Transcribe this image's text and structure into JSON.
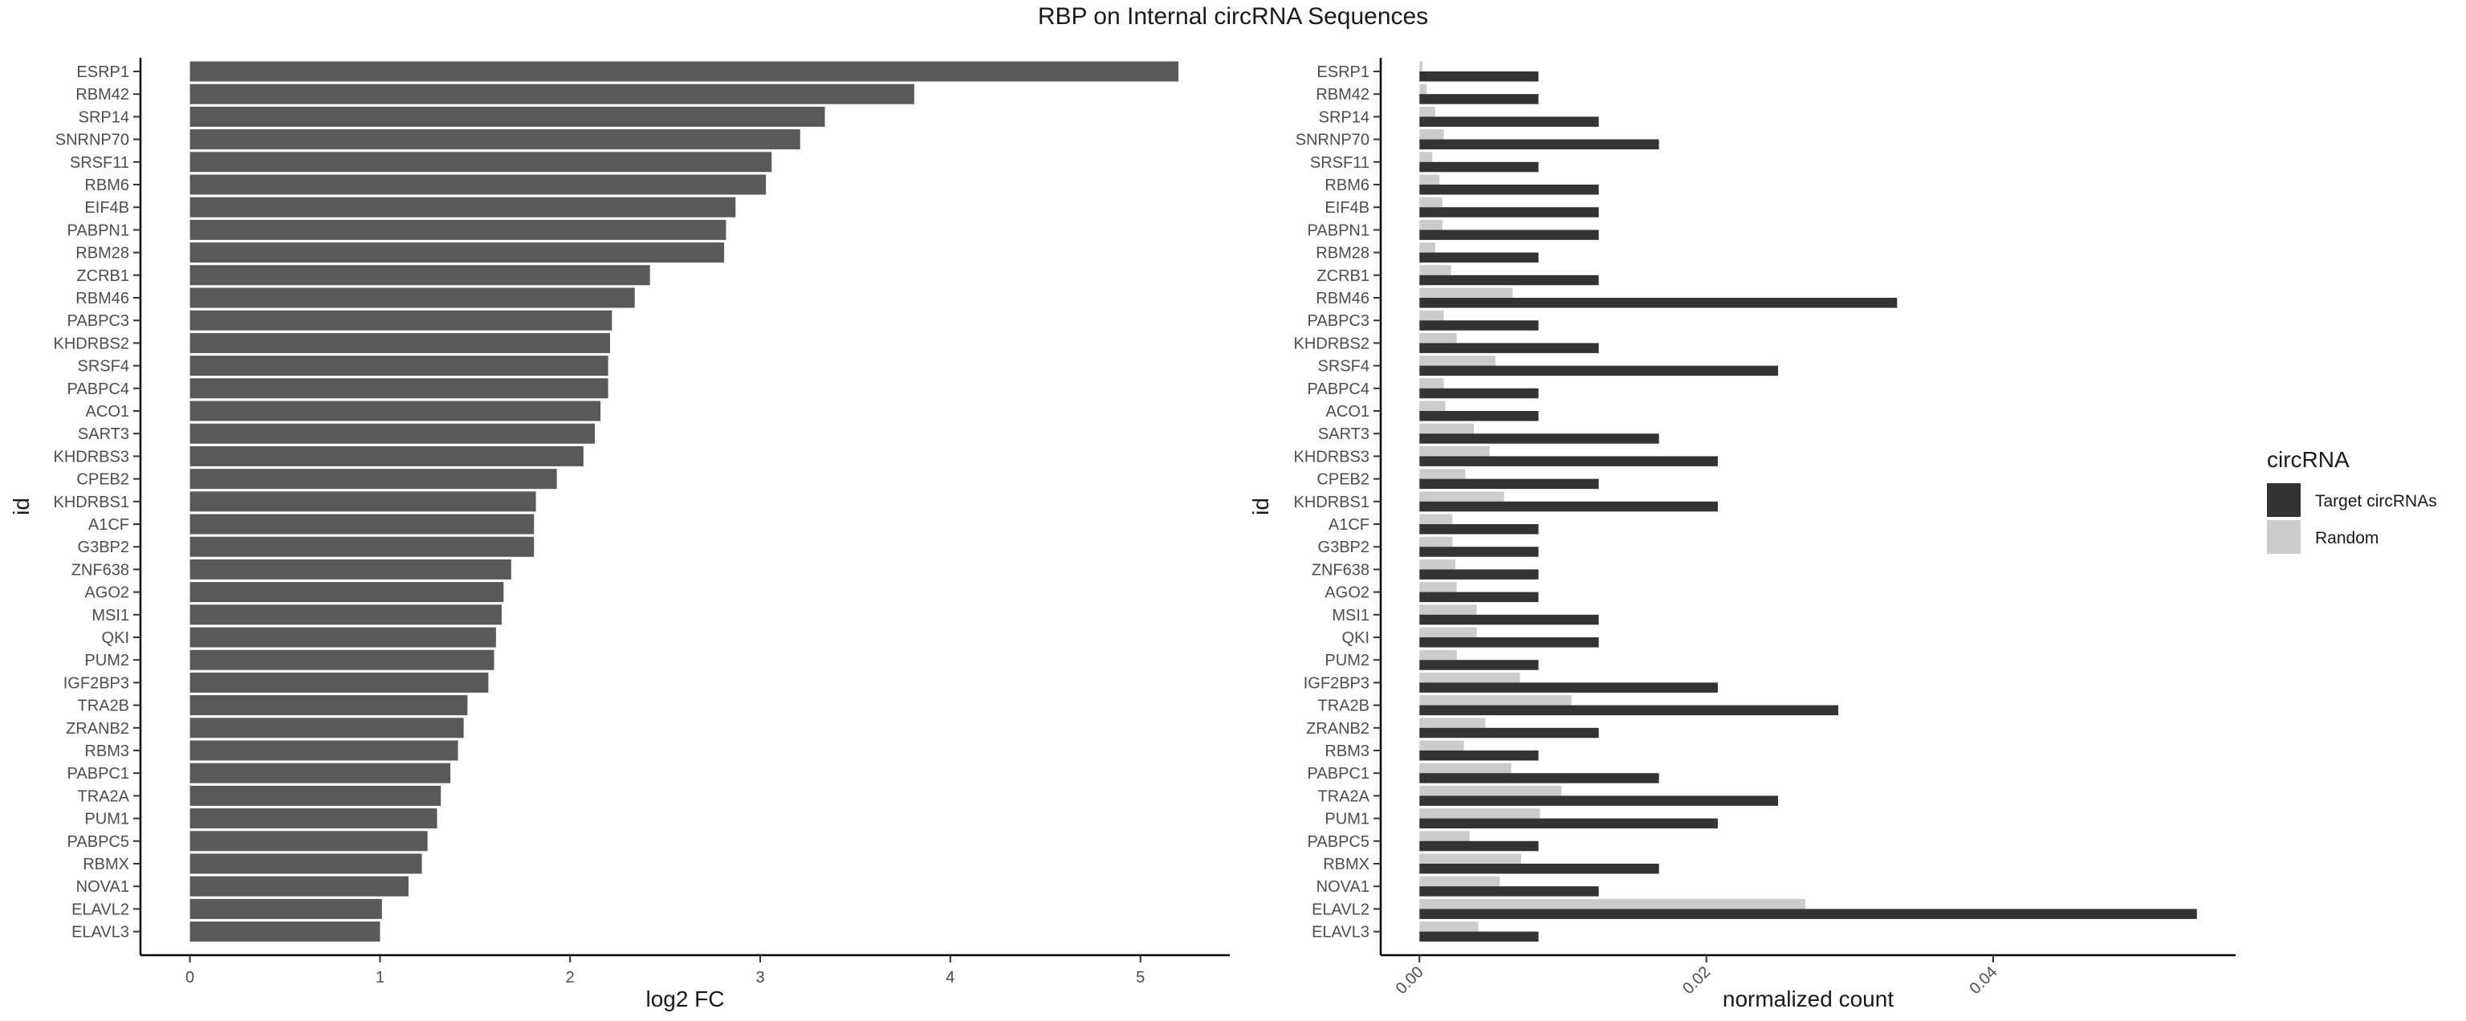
{
  "title": "RBP on Internal circRNA Sequences",
  "chart_data": [
    {
      "type": "bar",
      "orientation": "horizontal",
      "categories": [
        "ESRP1",
        "RBM42",
        "SRP14",
        "SNRNP70",
        "SRSF11",
        "RBM6",
        "EIF4B",
        "PABPN1",
        "RBM28",
        "ZCRB1",
        "RBM46",
        "PABPC3",
        "KHDRBS2",
        "SRSF4",
        "PABPC4",
        "ACO1",
        "SART3",
        "KHDRBS3",
        "CPEB2",
        "KHDRBS1",
        "A1CF",
        "G3BP2",
        "ZNF638",
        "AGO2",
        "MSI1",
        "QKI",
        "PUM2",
        "IGF2BP3",
        "TRA2B",
        "ZRANB2",
        "RBM3",
        "PABPC1",
        "TRA2A",
        "PUM1",
        "PABPC5",
        "RBMX",
        "NOVA1",
        "ELAVL2",
        "ELAVL3"
      ],
      "values": [
        5.2,
        3.81,
        3.34,
        3.21,
        3.06,
        3.03,
        2.87,
        2.82,
        2.81,
        2.42,
        2.34,
        2.22,
        2.21,
        2.2,
        2.2,
        2.16,
        2.13,
        2.07,
        1.93,
        1.82,
        1.81,
        1.81,
        1.69,
        1.65,
        1.64,
        1.61,
        1.6,
        1.57,
        1.46,
        1.44,
        1.41,
        1.37,
        1.32,
        1.3,
        1.25,
        1.22,
        1.15,
        1.01,
        1.0
      ],
      "xlabel": "log2 FC",
      "ylabel": "id",
      "xlim": [
        -0.26,
        5.47
      ],
      "xticks": [
        0,
        1,
        2,
        3,
        4,
        5
      ],
      "xtick_labels": [
        "0",
        "1",
        "2",
        "3",
        "4",
        "5"
      ],
      "grid": false,
      "color": "#595959"
    },
    {
      "type": "bar",
      "orientation": "horizontal",
      "grouped": true,
      "categories": [
        "ESRP1",
        "RBM42",
        "SRP14",
        "SNRNP70",
        "SRSF11",
        "RBM6",
        "EIF4B",
        "PABPN1",
        "RBM28",
        "ZCRB1",
        "RBM46",
        "PABPC3",
        "KHDRBS2",
        "SRSF4",
        "PABPC4",
        "ACO1",
        "SART3",
        "KHDRBS3",
        "CPEB2",
        "KHDRBS1",
        "A1CF",
        "G3BP2",
        "ZNF638",
        "AGO2",
        "MSI1",
        "QKI",
        "PUM2",
        "IGF2BP3",
        "TRA2B",
        "ZRANB2",
        "RBM3",
        "PABPC1",
        "TRA2A",
        "PUM1",
        "PABPC5",
        "RBMX",
        "NOVA1",
        "ELAVL2",
        "ELAVL3"
      ],
      "series": [
        {
          "name": "Target circRNAs",
          "color": "#333333",
          "values": [
            0.0083,
            0.0083,
            0.0125,
            0.0167,
            0.0083,
            0.0125,
            0.0125,
            0.0125,
            0.0083,
            0.0125,
            0.0333,
            0.0083,
            0.0125,
            0.025,
            0.0083,
            0.0083,
            0.0167,
            0.0208,
            0.0125,
            0.0208,
            0.0083,
            0.0083,
            0.0083,
            0.0083,
            0.0125,
            0.0125,
            0.0083,
            0.0208,
            0.0292,
            0.0125,
            0.0083,
            0.0167,
            0.025,
            0.0208,
            0.0083,
            0.0167,
            0.0125,
            0.0542,
            0.0083
          ]
        },
        {
          "name": "Random",
          "color": "#cccccc",
          "values": [
            0.0002,
            0.0005,
            0.0011,
            0.0017,
            0.0009,
            0.0014,
            0.0016,
            0.0016,
            0.0011,
            0.0022,
            0.0065,
            0.0017,
            0.0026,
            0.0053,
            0.0017,
            0.0018,
            0.0038,
            0.0049,
            0.0032,
            0.0059,
            0.0023,
            0.0023,
            0.0025,
            0.0026,
            0.004,
            0.004,
            0.0026,
            0.007,
            0.0106,
            0.0046,
            0.0031,
            0.0064,
            0.0099,
            0.0084,
            0.0035,
            0.0071,
            0.0056,
            0.0269,
            0.0041
          ]
        }
      ],
      "xlabel": "normalized count",
      "ylabel": "id",
      "xlim": [
        -0.0027,
        0.0569
      ],
      "xticks": [
        0,
        0.02,
        0.04
      ],
      "xtick_labels": [
        "0.00",
        "0.02",
        "0.04"
      ],
      "xtick_rotation": 45,
      "grid": false,
      "legend": {
        "title": "circRNA",
        "position": "right"
      }
    }
  ]
}
